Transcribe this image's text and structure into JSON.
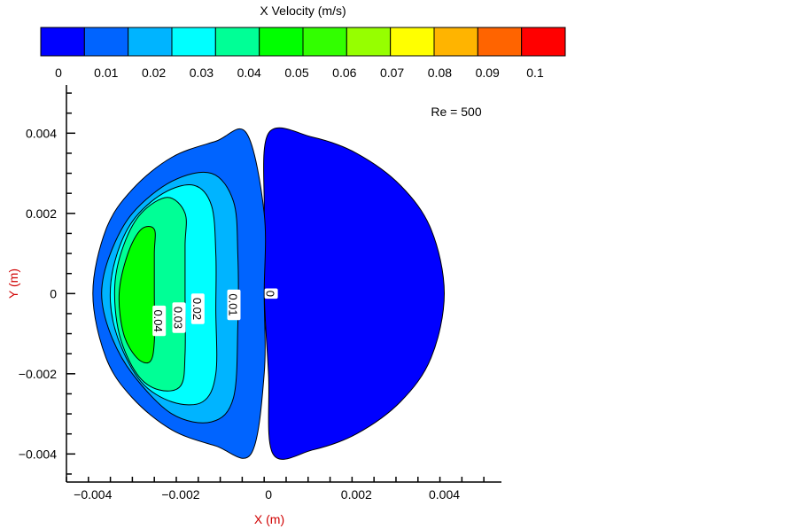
{
  "chart_data": {
    "type": "contour",
    "title": "X Velocity (m/s)",
    "annotation": "Re = 500",
    "xlabel": "X (m)",
    "ylabel": "Y (m)",
    "xlim": [
      -0.0046,
      0.0053
    ],
    "ylim": [
      -0.0047,
      0.0052
    ],
    "x_ticks": [
      -0.004,
      -0.002,
      0,
      0.002,
      0.004
    ],
    "x_tick_labels": [
      "−0.004",
      "−0.002",
      "0",
      "0.002",
      "0.004"
    ],
    "y_ticks": [
      0.004,
      0.002,
      0,
      -0.002,
      -0.004
    ],
    "y_tick_labels": [
      "0.004",
      "0.002",
      "0",
      "−0.002",
      "−0.004"
    ],
    "colorbar": {
      "levels": [
        0,
        0.01,
        0.02,
        0.03,
        0.04,
        0.05,
        0.06,
        0.07,
        0.08,
        0.09,
        0.1
      ],
      "labels": [
        "0",
        "0.01",
        "0.02",
        "0.03",
        "0.04",
        "0.05",
        "0.06",
        "0.07",
        "0.08",
        "0.09",
        "0.1"
      ],
      "colors": [
        "#0000ff",
        "#0064ff",
        "#00b4ff",
        "#00ffff",
        "#00ff96",
        "#00ff00",
        "#32ff00",
        "#96ff00",
        "#ffff00",
        "#ffb400",
        "#ff6400",
        "#ff0000"
      ]
    },
    "domain": {
      "shape": "circle",
      "center": [
        0,
        0
      ],
      "radius": 0.004
    },
    "regions": [
      {
        "level": 0.0,
        "color": "#0000ff",
        "points": [
          [
            0.0,
            0.004
          ],
          [
            0.001,
            0.0039
          ],
          [
            0.002,
            0.0035
          ],
          [
            0.003,
            0.0027
          ],
          [
            0.0037,
            0.0016
          ],
          [
            0.004,
            0.0
          ],
          [
            0.0037,
            -0.0016
          ],
          [
            0.003,
            -0.0027
          ],
          [
            0.002,
            -0.0035
          ],
          [
            0.001,
            -0.0039
          ],
          [
            0.0001,
            -0.004
          ],
          [
            0.0,
            -0.002
          ],
          [
            -0.0001,
            0.0
          ],
          [
            -0.0001,
            0.002
          ]
        ]
      },
      {
        "level": 0.01,
        "color": "#0064ff",
        "points": [
          [
            -0.0005,
            0.004
          ],
          [
            -0.0012,
            0.0038
          ],
          [
            -0.0022,
            0.0034
          ],
          [
            -0.0031,
            0.0026
          ],
          [
            -0.0037,
            0.0016
          ],
          [
            -0.004,
            0.0
          ],
          [
            -0.0037,
            -0.0016
          ],
          [
            -0.0031,
            -0.0026
          ],
          [
            -0.0022,
            -0.0034
          ],
          [
            -0.0012,
            -0.0038
          ],
          [
            -0.0004,
            -0.004
          ],
          [
            -0.0001,
            -0.002
          ],
          [
            -0.0001,
            0.0
          ],
          [
            -0.0001,
            0.002
          ]
        ]
      },
      {
        "level": 0.02,
        "color": "#00b4ff",
        "points": [
          [
            -0.0008,
            0.0023
          ],
          [
            -0.0013,
            0.003
          ],
          [
            -0.0022,
            0.0028
          ],
          [
            -0.0031,
            0.002
          ],
          [
            -0.0036,
            0.001
          ],
          [
            -0.0038,
            0.0
          ],
          [
            -0.0036,
            -0.001
          ],
          [
            -0.0031,
            -0.002
          ],
          [
            -0.0022,
            -0.003
          ],
          [
            -0.0013,
            -0.0032
          ],
          [
            -0.0008,
            -0.0026
          ],
          [
            -0.0007,
            -0.0008
          ],
          [
            -0.0007,
            0.001
          ]
        ]
      },
      {
        "level": 0.03,
        "color": "#00ffff",
        "points": [
          [
            -0.0013,
            0.0022
          ],
          [
            -0.0017,
            0.0027
          ],
          [
            -0.0024,
            0.0025
          ],
          [
            -0.0031,
            0.0018
          ],
          [
            -0.0035,
            0.0008
          ],
          [
            -0.0036,
            -0.0002
          ],
          [
            -0.0034,
            -0.0012
          ],
          [
            -0.0029,
            -0.0022
          ],
          [
            -0.0022,
            -0.0027
          ],
          [
            -0.0015,
            -0.0027
          ],
          [
            -0.0012,
            -0.002
          ],
          [
            -0.0012,
            -0.0004
          ],
          [
            -0.0012,
            0.001
          ]
        ]
      },
      {
        "level": 0.04,
        "color": "#00ff96",
        "points": [
          [
            -0.0019,
            0.002
          ],
          [
            -0.0023,
            0.0024
          ],
          [
            -0.0029,
            0.002
          ],
          [
            -0.0033,
            0.0012
          ],
          [
            -0.0035,
            0.0002
          ],
          [
            -0.0034,
            -0.001
          ],
          [
            -0.003,
            -0.002
          ],
          [
            -0.0025,
            -0.0024
          ],
          [
            -0.002,
            -0.0023
          ],
          [
            -0.0019,
            -0.0015
          ],
          [
            -0.0019,
            0.0
          ],
          [
            -0.0019,
            0.0012
          ]
        ]
      },
      {
        "level": 0.05,
        "color": "#00ff00",
        "points": [
          [
            -0.0026,
            0.0016
          ],
          [
            -0.0029,
            0.0016
          ],
          [
            -0.0032,
            0.001
          ],
          [
            -0.0034,
            0.0
          ],
          [
            -0.0033,
            -0.001
          ],
          [
            -0.003,
            -0.0016
          ],
          [
            -0.0027,
            -0.0017
          ],
          [
            -0.0026,
            -0.0012
          ],
          [
            -0.0026,
            0.0
          ],
          [
            -0.0026,
            0.001
          ]
        ]
      }
    ],
    "contour_labels": [
      {
        "text": "0",
        "x": 5e-05,
        "y": 0.0
      },
      {
        "text": "0.01",
        "x": -0.0008,
        "y": -0.00028
      },
      {
        "text": "0.02",
        "x": -0.00162,
        "y": -0.00038
      },
      {
        "text": "0.03",
        "x": -0.00205,
        "y": -0.0006
      },
      {
        "text": "0.04",
        "x": -0.0025,
        "y": -0.00068
      }
    ]
  }
}
